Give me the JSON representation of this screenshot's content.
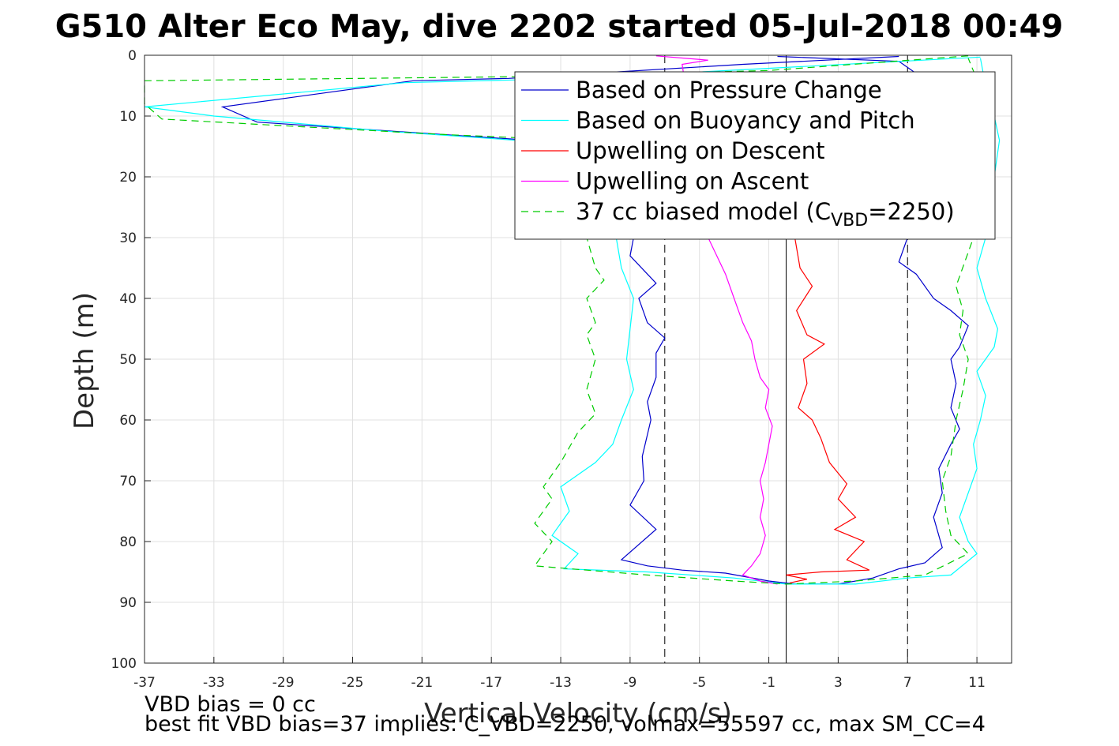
{
  "title": "G510 Alter Eco May, dive 2202 started 05-Jul-2018 00:49",
  "notes": {
    "line1": "VBD bias = 0 cc",
    "line2": "best fit VBD bias=37 implies: C_VBD=2250, volmax=55597 cc, max SM_CC=4"
  },
  "colors": {
    "pressure": "#0000cc",
    "buoyancy": "#00ffff",
    "descent": "#ff0000",
    "ascent": "#ff00ff",
    "model": "#00cc00",
    "grid": "#e0e0e0"
  },
  "legend": [
    {
      "key": "pressure",
      "text": "Based on Pressure Change",
      "dash": false
    },
    {
      "key": "buoyancy",
      "text": "Based on Buoyancy and Pitch",
      "dash": false
    },
    {
      "key": "descent",
      "text": "Upwelling on Descent",
      "dash": false
    },
    {
      "key": "ascent",
      "text": "Upwelling on Ascent",
      "dash": false
    },
    {
      "key": "model",
      "text": "37 cc biased model (C",
      "sub": "VBD",
      "tail": "=2250)",
      "dash": true
    }
  ],
  "chart_data": {
    "type": "line",
    "title": "G510 Alter Eco May, dive 2202 started 05-Jul-2018 00:49",
    "xlabel": "Vertical Velocity (cm/s)",
    "ylabel": "Depth (m)",
    "xlim": [
      -37,
      13
    ],
    "ylim": [
      0,
      100
    ],
    "y_reversed": true,
    "xticks": [
      -37,
      -33,
      -29,
      -25,
      -21,
      -17,
      -13,
      -9,
      -5,
      -1,
      3,
      7,
      11
    ],
    "yticks": [
      0,
      10,
      20,
      30,
      40,
      50,
      60,
      70,
      80,
      90,
      100
    ],
    "grid": true,
    "legend_location": "top-right",
    "reference_lines": [
      {
        "x": 0,
        "style": "solid"
      },
      {
        "x": -7,
        "style": "dashed"
      },
      {
        "x": 7,
        "style": "dashed"
      }
    ],
    "series": [
      {
        "name": "Based on Pressure Change",
        "key": "pressure",
        "points": [
          [
            6.5,
            0.2
          ],
          [
            -2.5,
            1.5
          ],
          [
            -16,
            3.8
          ],
          [
            -21.5,
            4.2
          ],
          [
            -32.5,
            8.5
          ],
          [
            -30.5,
            11
          ],
          [
            -20,
            13
          ],
          [
            -12,
            14.5
          ],
          [
            -9.5,
            19
          ],
          [
            -8.8,
            30
          ],
          [
            -9,
            33
          ],
          [
            -8,
            36
          ],
          [
            -7.5,
            37.5
          ],
          [
            -8.5,
            40
          ],
          [
            -8,
            44
          ],
          [
            -7,
            46.5
          ],
          [
            -7.5,
            49
          ],
          [
            -7.5,
            53
          ],
          [
            -8,
            57
          ],
          [
            -7.8,
            60
          ],
          [
            -8.3,
            66
          ],
          [
            -8.2,
            70
          ],
          [
            -9,
            74
          ],
          [
            -7.5,
            78
          ],
          [
            -9.5,
            83
          ],
          [
            -8,
            84
          ],
          [
            -6,
            84.7
          ],
          [
            -3.5,
            85.2
          ],
          [
            -1,
            86.5
          ],
          [
            0.5,
            87
          ],
          [
            3,
            87
          ],
          [
            5,
            86
          ],
          [
            6.5,
            84.5
          ],
          [
            8,
            83.5
          ],
          [
            9,
            81
          ],
          [
            8.5,
            76
          ],
          [
            9,
            72
          ],
          [
            8.8,
            68
          ],
          [
            9.5,
            64
          ],
          [
            10,
            61.5
          ],
          [
            9.5,
            58
          ],
          [
            9.8,
            54
          ],
          [
            9.5,
            50
          ],
          [
            10,
            48
          ],
          [
            10.5,
            44.5
          ],
          [
            9.5,
            42
          ],
          [
            8.5,
            40
          ],
          [
            7.5,
            36
          ],
          [
            6.5,
            34
          ],
          [
            7,
            30
          ],
          [
            9,
            18
          ],
          [
            10,
            10
          ],
          [
            8,
            4
          ],
          [
            6.5,
            1
          ],
          [
            -0.5,
            0.2
          ]
        ]
      },
      {
        "name": "Based on Buoyancy and Pitch",
        "key": "buoyancy",
        "points": [
          [
            11.2,
            0.3
          ],
          [
            0,
            2
          ],
          [
            -12,
            3.8
          ],
          [
            -22,
            4.5
          ],
          [
            -37,
            8.5
          ],
          [
            -33,
            10
          ],
          [
            -23,
            12.5
          ],
          [
            -13,
            14.5
          ],
          [
            -10.5,
            20
          ],
          [
            -9.8,
            30
          ],
          [
            -9.5,
            35
          ],
          [
            -8.8,
            40
          ],
          [
            -9,
            45
          ],
          [
            -9.2,
            50
          ],
          [
            -8.8,
            55
          ],
          [
            -9.5,
            60
          ],
          [
            -10,
            64
          ],
          [
            -11,
            67
          ],
          [
            -13,
            71
          ],
          [
            -12.5,
            75
          ],
          [
            -13.5,
            79
          ],
          [
            -12,
            82
          ],
          [
            -12.8,
            84.5
          ],
          [
            -8,
            85
          ],
          [
            -3,
            86
          ],
          [
            0,
            87
          ],
          [
            4,
            87
          ],
          [
            7,
            86
          ],
          [
            9.5,
            85.5
          ],
          [
            11,
            82
          ],
          [
            10.5,
            80
          ],
          [
            10,
            76
          ],
          [
            10.5,
            72
          ],
          [
            11,
            68
          ],
          [
            10.8,
            64
          ],
          [
            11.2,
            60
          ],
          [
            11.5,
            56
          ],
          [
            11,
            52
          ],
          [
            12,
            48
          ],
          [
            12.2,
            45
          ],
          [
            11.5,
            40
          ],
          [
            11,
            35
          ],
          [
            11.5,
            30
          ],
          [
            12,
            20
          ],
          [
            12.3,
            14
          ],
          [
            12,
            10
          ],
          [
            11.5,
            5
          ],
          [
            11.2,
            0.5
          ]
        ]
      },
      {
        "name": "Upwelling on Descent",
        "key": "descent",
        "points": [
          [
            0.5,
            30
          ],
          [
            0.8,
            35
          ],
          [
            1.5,
            38
          ],
          [
            0.6,
            42
          ],
          [
            1.2,
            46
          ],
          [
            2.2,
            47.5
          ],
          [
            1,
            50
          ],
          [
            1.2,
            54
          ],
          [
            0.7,
            58
          ],
          [
            1.5,
            60
          ],
          [
            2,
            63
          ],
          [
            2.5,
            67
          ],
          [
            3.5,
            70.5
          ],
          [
            3,
            73
          ],
          [
            4,
            76
          ],
          [
            2.8,
            78
          ],
          [
            4.5,
            80
          ],
          [
            3.5,
            83
          ],
          [
            4.8,
            84.7
          ],
          [
            2,
            85
          ],
          [
            0,
            85.5
          ],
          [
            1.2,
            86.2
          ],
          [
            0.2,
            86.8
          ]
        ]
      },
      {
        "name": "Upwelling on Ascent",
        "key": "ascent",
        "points": [
          [
            -7.5,
            0.1
          ],
          [
            -4.5,
            0.8
          ],
          [
            -6,
            1.5
          ],
          [
            -4.5,
            30
          ],
          [
            -4,
            33
          ],
          [
            -3.5,
            36
          ],
          [
            -3,
            40
          ],
          [
            -2.5,
            44
          ],
          [
            -2,
            47
          ],
          [
            -1.8,
            50
          ],
          [
            -1.5,
            53
          ],
          [
            -1,
            55
          ],
          [
            -1.2,
            58
          ],
          [
            -0.8,
            61
          ],
          [
            -1,
            64
          ],
          [
            -1.2,
            67
          ],
          [
            -1.5,
            70
          ],
          [
            -1.3,
            73
          ],
          [
            -1.5,
            76
          ],
          [
            -1.2,
            79
          ],
          [
            -1.5,
            82
          ],
          [
            -2,
            84
          ],
          [
            -2.5,
            85.5
          ],
          [
            -1.5,
            86.5
          ],
          [
            -0.5,
            87
          ]
        ]
      },
      {
        "name": "37 cc biased model (CVBD=2250)",
        "key": "model",
        "dashed": true,
        "points": [
          [
            10.5,
            0.1
          ],
          [
            -1,
            2.5
          ],
          [
            -15,
            3.5
          ],
          [
            -37,
            4.2
          ],
          [
            -37,
            8
          ],
          [
            -36,
            10.5
          ],
          [
            -20,
            13
          ],
          [
            -12,
            14
          ],
          [
            -11,
            20
          ],
          [
            -11.5,
            30
          ],
          [
            -11,
            35
          ],
          [
            -10.5,
            37
          ],
          [
            -11.5,
            40
          ],
          [
            -11,
            44
          ],
          [
            -11.5,
            46
          ],
          [
            -11,
            50
          ],
          [
            -11.5,
            55
          ],
          [
            -11,
            59
          ],
          [
            -12,
            62
          ],
          [
            -13,
            67
          ],
          [
            -14,
            71
          ],
          [
            -13.5,
            73
          ],
          [
            -14.5,
            77
          ],
          [
            -13.5,
            80
          ],
          [
            -14.5,
            84
          ],
          [
            -11.5,
            84.7
          ],
          [
            -8,
            85.5
          ],
          [
            -3,
            86.5
          ],
          [
            0,
            87
          ],
          [
            4,
            86.5
          ],
          [
            8,
            85.5
          ],
          [
            10.5,
            82
          ],
          [
            9.5,
            79
          ],
          [
            9.2,
            75
          ],
          [
            9,
            70
          ],
          [
            9.5,
            66
          ],
          [
            9.8,
            60
          ],
          [
            10.2,
            55
          ],
          [
            10.5,
            50
          ],
          [
            10,
            46
          ],
          [
            10.2,
            42
          ],
          [
            9.8,
            38
          ],
          [
            10.3,
            34
          ],
          [
            10.8,
            30
          ],
          [
            11,
            20
          ],
          [
            11.5,
            10
          ],
          [
            11,
            4
          ],
          [
            10.5,
            0.5
          ]
        ]
      }
    ]
  }
}
